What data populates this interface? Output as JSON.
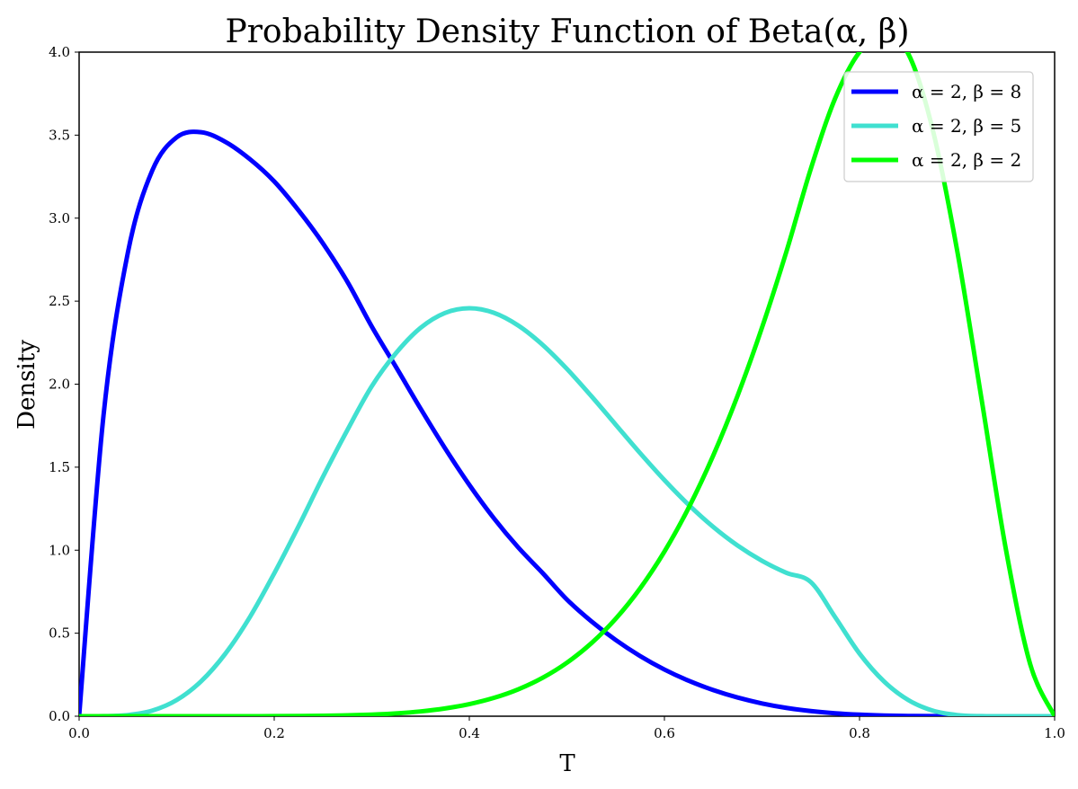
{
  "chart_data": {
    "type": "line",
    "title": "Probability Density Function of Beta(α, β)",
    "xlabel": "T",
    "ylabel": "Density",
    "xlim": [
      0.0,
      1.0
    ],
    "ylim": [
      0.0,
      4.0
    ],
    "x_ticks": [
      "0.0",
      "0.2",
      "0.4",
      "0.6",
      "0.8",
      "1.0"
    ],
    "y_ticks": [
      "0.0",
      "0.5",
      "1.0",
      "1.5",
      "2.0",
      "2.5",
      "3.0",
      "3.5",
      "4.0"
    ],
    "x_tick_values": [
      0.0,
      0.2,
      0.4,
      0.6,
      0.8,
      1.0
    ],
    "y_tick_values": [
      0.0,
      0.5,
      1.0,
      1.5,
      2.0,
      2.5,
      3.0,
      3.5,
      4.0
    ],
    "grid": false,
    "legend_position": "top-right",
    "x": [
      0.0,
      0.025,
      0.05,
      0.075,
      0.1,
      0.125,
      0.15,
      0.175,
      0.2,
      0.225,
      0.25,
      0.275,
      0.3,
      0.325,
      0.35,
      0.375,
      0.4,
      0.425,
      0.45,
      0.475,
      0.5,
      0.525,
      0.55,
      0.575,
      0.6,
      0.625,
      0.65,
      0.675,
      0.7,
      0.725,
      0.75,
      0.775,
      0.8,
      0.825,
      0.85,
      0.875,
      0.9,
      0.925,
      0.95,
      0.975,
      1.0
    ],
    "series": [
      {
        "name": "α = 2, β = 8",
        "color": "#0000ff",
        "values": [
          0.0,
          1.8113,
          2.7933,
          3.2871,
          3.4868,
          3.5177,
          3.4593,
          3.3555,
          3.2212,
          3.0463,
          2.8476,
          2.6167,
          2.3471,
          2.1017,
          1.8531,
          1.6148,
          1.3935,
          1.1936,
          1.0175,
          0.8634,
          0.7031,
          0.5722,
          0.4593,
          0.3627,
          0.2811,
          0.2132,
          0.1575,
          0.1125,
          0.0771,
          0.0502,
          0.0309,
          0.0178,
          0.0093,
          0.0043,
          0.0017,
          0.0005,
          0.0001,
          0.0,
          0.0,
          0.0,
          0.0
        ]
      },
      {
        "name": "α = 2, β = 5",
        "color": "#40e0d0",
        "values": [
          0.0,
          0.0004,
          0.0071,
          0.0336,
          0.0972,
          0.21,
          0.3772,
          0.5967,
          0.8602,
          1.1448,
          1.4424,
          1.7238,
          1.9874,
          2.1884,
          2.3391,
          2.4287,
          2.4576,
          2.4303,
          2.3538,
          2.2376,
          2.0923,
          1.9286,
          1.7567,
          1.5854,
          1.4222,
          1.2725,
          1.1405,
          1.0282,
          0.9363,
          0.8637,
          0.8082,
          0.5967,
          0.3772,
          0.21,
          0.0972,
          0.0336,
          0.0071,
          0.0004,
          0.0,
          0.0,
          0.0
        ]
      },
      {
        "name": "α = 2, β = 2",
        "color": "#00ff00",
        "values": [
          0.0,
          0.0,
          0.0,
          0.0,
          0.0,
          0.0,
          0.0001,
          0.0002,
          0.0005,
          0.0012,
          0.0026,
          0.0052,
          0.0097,
          0.0171,
          0.0288,
          0.0466,
          0.0729,
          0.1102,
          0.1617,
          0.231,
          0.3221,
          0.4392,
          0.5867,
          0.7694,
          0.9917,
          1.2575,
          1.5698,
          1.9305,
          2.3404,
          2.7974,
          3.2959,
          3.7212,
          3.9999,
          4.0999,
          3.9894,
          3.5336,
          2.8076,
          1.913,
          1.0068,
          0.3125,
          0.0
        ]
      }
    ]
  }
}
